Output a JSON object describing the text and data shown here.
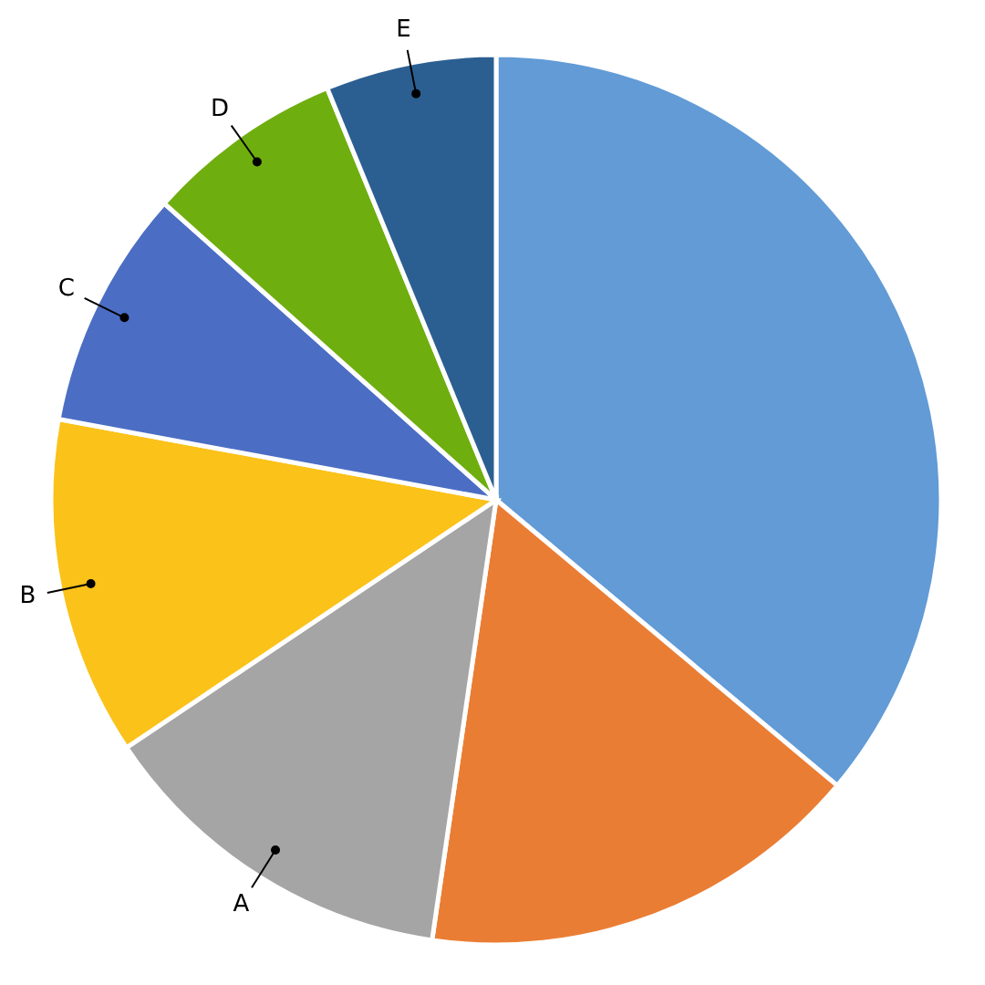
{
  "chart_data": {
    "type": "pie",
    "categories": [
      null,
      null,
      "A",
      "B",
      "C",
      "D",
      "E"
    ],
    "values": [
      36.1,
      16.2,
      13.3,
      12.3,
      8.7,
      7.2,
      6.2
    ],
    "colors": [
      "#629bd6",
      "#ea7d34",
      "#a5a5a5",
      "#fbc21a",
      "#4b6ec4",
      "#6fae0f",
      "#2c5f91"
    ]
  }
}
